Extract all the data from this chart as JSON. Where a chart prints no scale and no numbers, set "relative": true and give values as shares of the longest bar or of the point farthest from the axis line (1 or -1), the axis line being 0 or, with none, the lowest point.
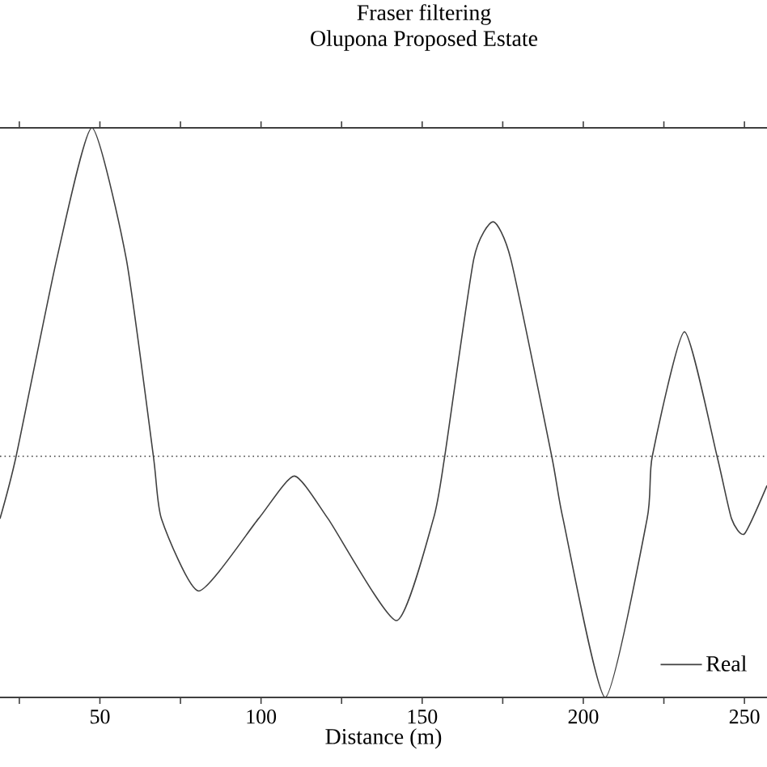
{
  "chart_data": {
    "type": "line",
    "title": "Fraser filtering",
    "subtitle": "Olupona Proposed Estate",
    "xlabel": "Distance (m)",
    "relative": true,
    "xlim": [
      19,
      257
    ],
    "xticks": [
      {
        "value": 25,
        "label": null
      },
      50,
      {
        "value": 75,
        "label": null
      },
      100,
      {
        "value": 125,
        "label": null
      },
      150,
      {
        "value": 175,
        "label": null
      },
      200,
      {
        "value": 225,
        "label": null
      },
      250
    ],
    "x": [
      19,
      24,
      36.6,
      47.5,
      58.2,
      66.6,
      69.1,
      80.7,
      99.2,
      110.3,
      120.8,
      142,
      153.5,
      157,
      166,
      172,
      177.5,
      190.2,
      193.7,
      206.8,
      219.8,
      221.4,
      231.4,
      241.5,
      246,
      250,
      257
    ],
    "series": [
      {
        "name": "Real",
        "color": "#404040",
        "values": [
          -0.19,
          0,
          0.6,
          1.0,
          0.6,
          0,
          -0.19,
          -0.41,
          -0.19,
          -0.06,
          -0.19,
          -0.5,
          -0.19,
          0,
          0.6,
          0.714,
          0.6,
          0,
          -0.19,
          -0.734,
          -0.19,
          0,
          0.379,
          0,
          -0.19,
          -0.236,
          -0.089
        ]
      }
    ],
    "ref_lines": [
      {
        "axis": "y",
        "value": 0,
        "line_style": "dotted",
        "color": "#404040"
      }
    ],
    "legend": "bottom right",
    "line_style": "solid",
    "marker": "none"
  }
}
